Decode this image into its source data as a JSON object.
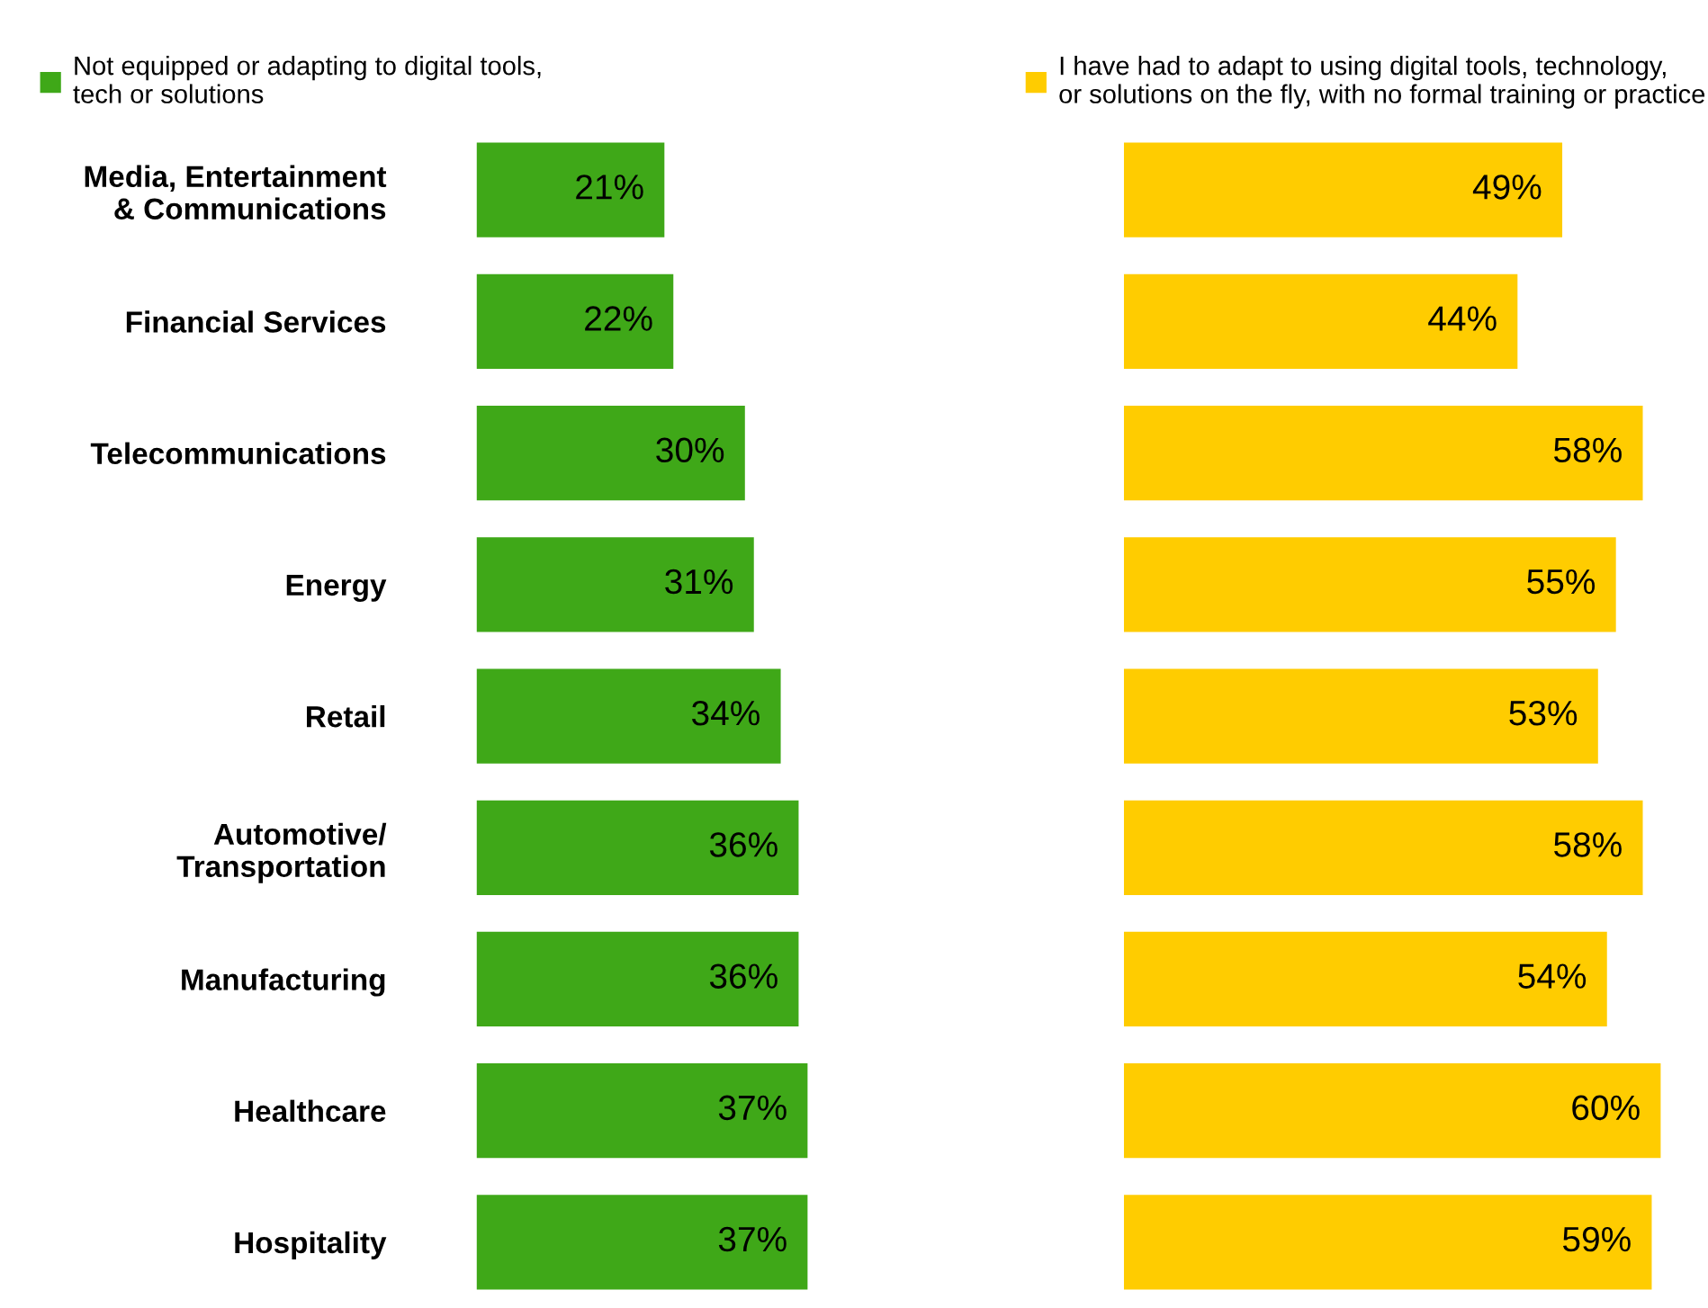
{
  "chart_data": [
    {
      "type": "bar",
      "orientation": "horizontal",
      "categories": [
        "Media, Entertainment\n& Communications",
        "Financial Services",
        "Telecommunications",
        "Energy",
        "Retail",
        "Automotive/\nTransportation",
        "Manufacturing",
        "Healthcare",
        "Hospitality"
      ],
      "series": [
        {
          "name": "Not equipped or adapting to digital tools,\ntech or solutions",
          "color": "#3fa818",
          "values": [
            21,
            22,
            30,
            31,
            34,
            36,
            36,
            37,
            37
          ],
          "value_labels": [
            "21%",
            "22%",
            "30%",
            "31%",
            "34%",
            "36%",
            "36%",
            "37%",
            "37%"
          ]
        }
      ],
      "legend": "top left",
      "tick_labels": "y"
    },
    {
      "type": "bar",
      "orientation": "horizontal",
      "categories": [
        null,
        null,
        null,
        null,
        null,
        null,
        null,
        null,
        null
      ],
      "series": [
        {
          "name": "I have had to adapt to using digital tools, technology,\nor solutions on the fly, with no formal training or practice",
          "color": "#ffcc00",
          "values": [
            49,
            44,
            58,
            55,
            53,
            58,
            54,
            60,
            59
          ],
          "value_labels": [
            "49%",
            "44%",
            "58%",
            "55%",
            "53%",
            "58%",
            "54%",
            "60%",
            "59%"
          ]
        }
      ],
      "legend": "top left",
      "tick_labels": false
    }
  ]
}
